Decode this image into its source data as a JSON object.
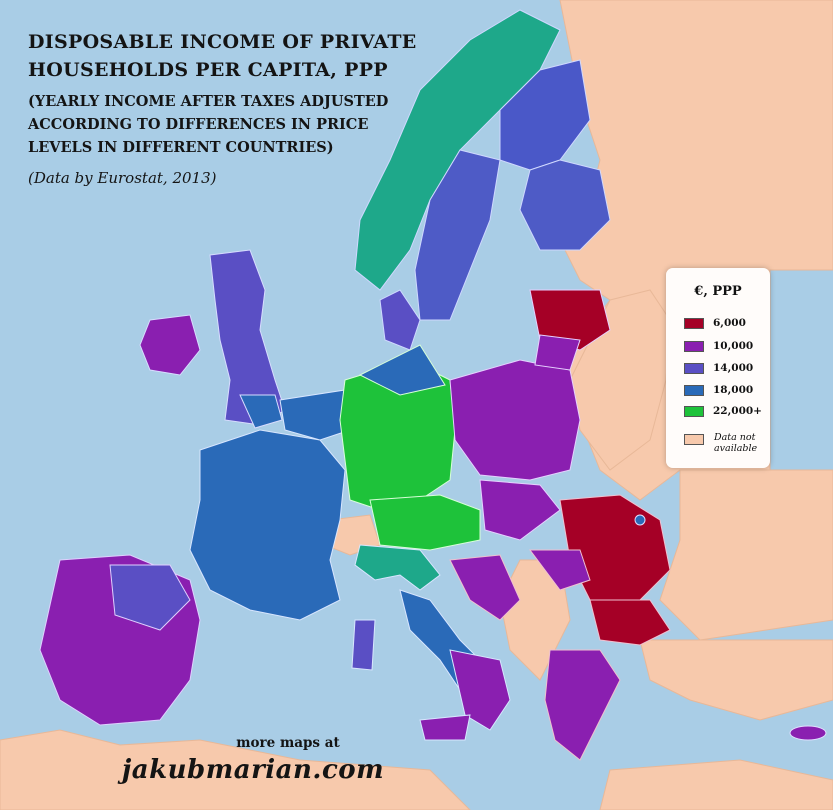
{
  "title": {
    "lines": [
      "DISPOSABLE INCOME OF PRIVATE",
      "HOUSEHOLDS PER CAPITA, PPP"
    ],
    "subtitle_lines": [
      "(YEARLY INCOME AFTER TAXES ADJUSTED",
      "ACCORDING TO DIFFERENCES IN PRICE",
      "LEVELS IN DIFFERENT COUNTRIES)"
    ],
    "source": "(Data by Eurostat, 2013)"
  },
  "legend": {
    "title": "€, PPP",
    "items": [
      {
        "label": "6,000",
        "color": "#a50026"
      },
      {
        "label": "10,000",
        "color": "#8a1fb0"
      },
      {
        "label": "14,000",
        "color": "#5a4fc4"
      },
      {
        "label": "18,000",
        "color": "#2a6ab8"
      },
      {
        "label": "22,000+",
        "color": "#1ec23a"
      }
    ],
    "na_label_lines": [
      "Data not",
      "available"
    ],
    "na_color": "#f7c9ac"
  },
  "credit": {
    "more_maps": "more maps at",
    "site": "jakubmarian.com"
  },
  "colors": {
    "sea": "#a9cde6",
    "no_data": "#f7c9ac",
    "teal": "#1ea88a"
  }
}
